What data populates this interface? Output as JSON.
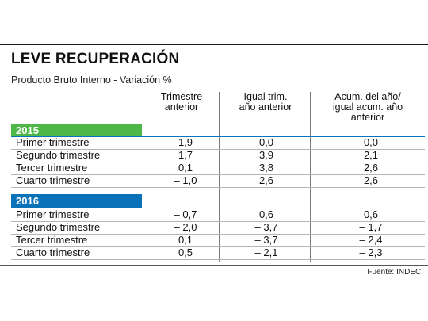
{
  "title": "LEVE RECUPERACIÓN",
  "subtitle": "Producto Bruto Interno - Variación %",
  "columns": [
    "Trimestre anterior",
    "Igual trim. año anterior",
    "Acum. del año/ igual acum. año anterior"
  ],
  "columns_lines": [
    [
      "Trimestre",
      "anterior"
    ],
    [
      "Igual trim.",
      "año anterior"
    ],
    [
      "Acum. del año/",
      "igual acum. año",
      "anterior"
    ]
  ],
  "sections": [
    {
      "year": "2015",
      "rows": [
        {
          "label": "Primer trimestre",
          "values": [
            "1,9",
            "0,0",
            "0,0"
          ]
        },
        {
          "label": "Segundo trimestre",
          "values": [
            "1,7",
            "3,9",
            "2,1"
          ]
        },
        {
          "label": "Tercer trimestre",
          "values": [
            "0,1",
            "3,8",
            "2,6"
          ]
        },
        {
          "label": "Cuarto trimestre",
          "values": [
            "– 1,0",
            "2,6",
            "2,6"
          ]
        }
      ]
    },
    {
      "year": "2016",
      "rows": [
        {
          "label": "Primer trimestre",
          "values": [
            "– 0,7",
            "0,6",
            "0,6"
          ]
        },
        {
          "label": "Segundo trimestre",
          "values": [
            "– 2,0",
            "– 3,7",
            "– 1,7"
          ]
        },
        {
          "label": "Tercer trimestre",
          "values": [
            "0,1",
            "– 3,7",
            "– 2,4"
          ]
        },
        {
          "label": "Cuarto trimestre",
          "values": [
            "0,5",
            "– 2,1",
            "– 2,3"
          ]
        }
      ]
    }
  ],
  "source": "Fuente: INDEC.",
  "colors": {
    "year_bar": "#0a72b9",
    "accent_green": "#4db848",
    "text": "#1a1a1a"
  }
}
